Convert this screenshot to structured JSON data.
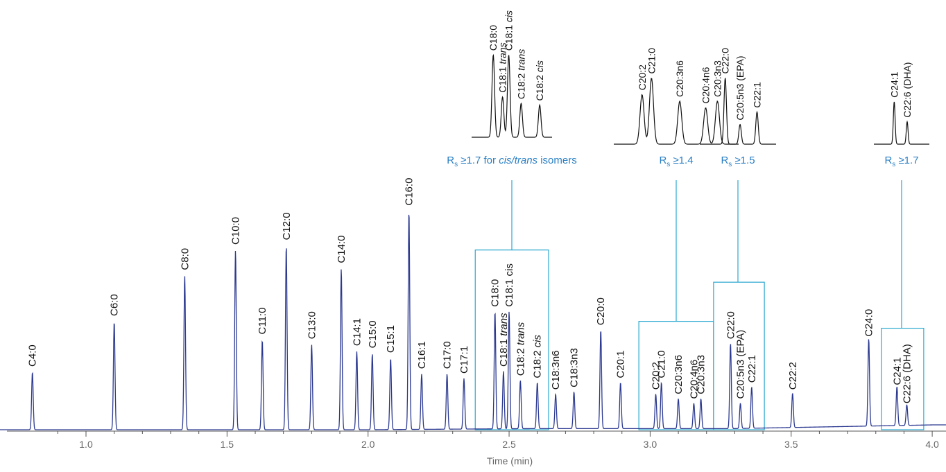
{
  "chart_data": {
    "type": "line",
    "title": "",
    "xlabel": "Time (min)",
    "ylabel": "",
    "xlim": [
      0.62,
      4.05
    ],
    "ylim": [
      0,
      100
    ],
    "grid": false,
    "x_ticks": [
      1.0,
      1.5,
      2.0,
      2.5,
      3.0,
      3.5,
      4.0
    ],
    "x_tick_labels": [
      "1.0",
      "1.5",
      "2.0",
      "2.5",
      "3.0",
      "3.5",
      "4.0"
    ],
    "colors": {
      "trace": "#2b3990",
      "annotation": "#29a8d0",
      "annotation_text": "#2a7fc4",
      "axis": "#555555"
    },
    "peaks": [
      {
        "name": "C4:0",
        "rt": 0.81,
        "height": 25
      },
      {
        "name": "C6:0",
        "rt": 1.1,
        "height": 47
      },
      {
        "name": "C8:0",
        "rt": 1.35,
        "height": 67
      },
      {
        "name": "C10:0",
        "rt": 1.53,
        "height": 78
      },
      {
        "name": "C11:0",
        "rt": 1.625,
        "height": 39
      },
      {
        "name": "C12:0",
        "rt": 1.71,
        "height": 80
      },
      {
        "name": "C13:0",
        "rt": 1.8,
        "height": 37
      },
      {
        "name": "C14:0",
        "rt": 1.905,
        "height": 70
      },
      {
        "name": "C14:1",
        "rt": 1.96,
        "height": 34
      },
      {
        "name": "C15:0",
        "rt": 2.015,
        "height": 33
      },
      {
        "name": "C15:1",
        "rt": 2.08,
        "height": 31
      },
      {
        "name": "C16:0",
        "rt": 2.145,
        "height": 95
      },
      {
        "name": "C16:1",
        "rt": 2.19,
        "height": 24
      },
      {
        "name": "C17:0",
        "rt": 2.28,
        "height": 24
      },
      {
        "name": "C17:1",
        "rt": 2.34,
        "height": 22
      },
      {
        "name": "C18:0",
        "rt": 2.45,
        "height": 51
      },
      {
        "name": "C18:1 trans",
        "rt": 2.48,
        "height": 25
      },
      {
        "name": "C18:1 cis",
        "rt": 2.5,
        "height": 51
      },
      {
        "name": "C18:2 trans",
        "rt": 2.54,
        "height": 21
      },
      {
        "name": "C18:2 cis",
        "rt": 2.6,
        "height": 20
      },
      {
        "name": "C18:3n6",
        "rt": 2.665,
        "height": 15
      },
      {
        "name": "C18:3n3",
        "rt": 2.73,
        "height": 16
      },
      {
        "name": "C20:0",
        "rt": 2.825,
        "height": 43
      },
      {
        "name": "C20:1",
        "rt": 2.895,
        "height": 20
      },
      {
        "name": "C20:2",
        "rt": 3.02,
        "height": 15
      },
      {
        "name": "C21:0",
        "rt": 3.04,
        "height": 20
      },
      {
        "name": "C20:3n6",
        "rt": 3.1,
        "height": 13
      },
      {
        "name": "C20:4n6",
        "rt": 3.155,
        "height": 11
      },
      {
        "name": "C20:3n3",
        "rt": 3.18,
        "height": 13
      },
      {
        "name": "C22:0",
        "rt": 3.285,
        "height": 37
      },
      {
        "name": "C20:5n3 (EPA)",
        "rt": 3.32,
        "height": 11
      },
      {
        "name": "C22:1",
        "rt": 3.36,
        "height": 18
      },
      {
        "name": "C22:2",
        "rt": 3.505,
        "height": 15
      },
      {
        "name": "C24:0",
        "rt": 3.775,
        "height": 38
      },
      {
        "name": "C24:1",
        "rt": 3.875,
        "height": 17
      },
      {
        "name": "C22:6 (DHA)",
        "rt": 3.91,
        "height": 9
      }
    ],
    "annotations": [
      {
        "range": [
          2.38,
          2.64
        ],
        "resolution_prefix": "R",
        "resolution_sub": "s",
        "resolution_text": " ≥1.7 for ",
        "resolution_italic": "cis/trans",
        "resolution_suffix": " isomers",
        "inset_peaks": [
          "C18:0",
          "C18:1 trans",
          "C18:1 cis",
          "C18:2 trans",
          "C18:2 cis"
        ]
      },
      {
        "range": [
          2.96,
          3.225
        ],
        "resolution_prefix": "R",
        "resolution_sub": "s",
        "resolution_text": " ≥1.4",
        "resolution_italic": "",
        "resolution_suffix": "",
        "inset_peaks": [
          "C20:2",
          "C21:0",
          "C20:3n6",
          "C20:4n6",
          "C20:3n3"
        ]
      },
      {
        "range": [
          3.225,
          3.405
        ],
        "resolution_prefix": "R",
        "resolution_sub": "s",
        "resolution_text": " ≥1.5",
        "resolution_italic": "",
        "resolution_suffix": "",
        "inset_peaks": [
          "C22:0",
          "C20:5n3 (EPA)",
          "C22:1"
        ]
      },
      {
        "range": [
          3.82,
          3.97
        ],
        "resolution_prefix": "R",
        "resolution_sub": "s",
        "resolution_text": " ≥1.7",
        "resolution_italic": "",
        "resolution_suffix": "",
        "inset_peaks": [
          "C24:1",
          "C22:6 (DHA)"
        ]
      }
    ]
  }
}
